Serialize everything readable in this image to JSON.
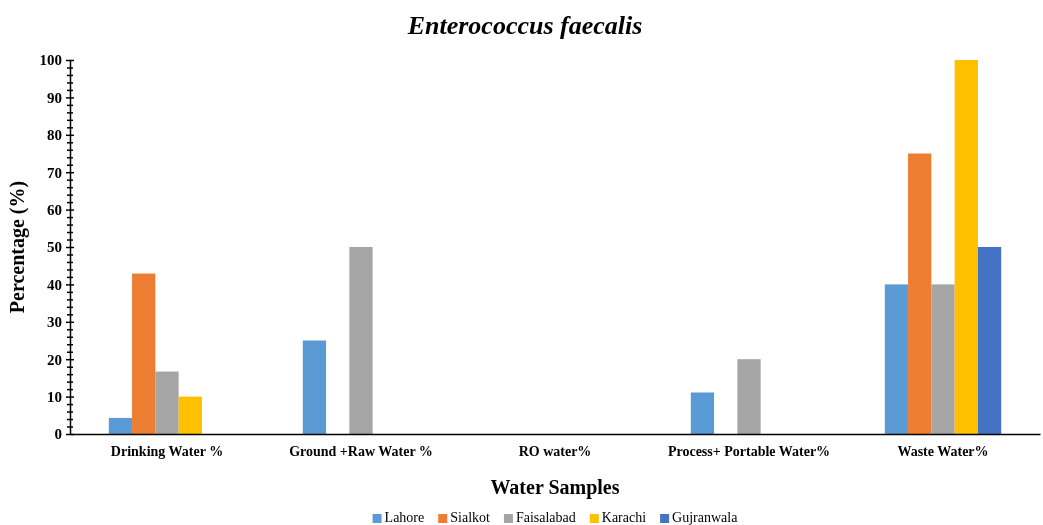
{
  "chart_data": {
    "type": "bar",
    "title": "Enterococcus faecalis",
    "xlabel": "Water Samples",
    "ylabel": "Percentage (%)",
    "categories": [
      "Drinking Water %",
      "Ground +Raw Water %",
      "RO water%",
      "Process+ Portable Water%",
      "Waste Water%"
    ],
    "series": [
      {
        "name": "Lahore",
        "color": "#5b9bd5",
        "values": [
          4.3,
          25,
          0,
          11.1,
          40
        ]
      },
      {
        "name": "Sialkot",
        "color": "#ed7d31",
        "values": [
          42.9,
          0,
          0,
          0,
          75
        ]
      },
      {
        "name": "Faisalabad",
        "color": "#a5a5a5",
        "values": [
          16.7,
          50,
          0,
          20,
          40
        ]
      },
      {
        "name": "Karachi",
        "color": "#ffc000",
        "values": [
          10,
          0,
          0,
          0,
          100
        ]
      },
      {
        "name": "Gujranwala",
        "color": "#4472c4",
        "values": [
          0,
          0,
          0,
          0,
          50
        ]
      }
    ],
    "ylim": [
      0,
      100
    ],
    "yticks": [
      0,
      {
        "value": 2,
        "label": null
      },
      {
        "value": 4,
        "label": null
      },
      {
        "value": 6,
        "label": null
      },
      {
        "value": 8,
        "label": null
      },
      10,
      {
        "value": 12,
        "label": null
      },
      {
        "value": 14,
        "label": null
      },
      {
        "value": 16,
        "label": null
      },
      {
        "value": 18,
        "label": null
      },
      20,
      {
        "value": 22,
        "label": null
      },
      {
        "value": 24,
        "label": null
      },
      {
        "value": 26,
        "label": null
      },
      {
        "value": 28,
        "label": null
      },
      30,
      {
        "value": 32,
        "label": null
      },
      {
        "value": 34,
        "label": null
      },
      {
        "value": 36,
        "label": null
      },
      {
        "value": 38,
        "label": null
      },
      40,
      {
        "value": 42,
        "label": null
      },
      {
        "value": 44,
        "label": null
      },
      {
        "value": 46,
        "label": null
      },
      {
        "value": 48,
        "label": null
      },
      50,
      {
        "value": 52,
        "label": null
      },
      {
        "value": 54,
        "label": null
      },
      {
        "value": 56,
        "label": null
      },
      {
        "value": 58,
        "label": null
      },
      60,
      {
        "value": 62,
        "label": null
      },
      {
        "value": 64,
        "label": null
      },
      {
        "value": 66,
        "label": null
      },
      {
        "value": 68,
        "label": null
      },
      70,
      {
        "value": 72,
        "label": null
      },
      {
        "value": 74,
        "label": null
      },
      {
        "value": 76,
        "label": null
      },
      {
        "value": 78,
        "label": null
      },
      80,
      {
        "value": 82,
        "label": null
      },
      {
        "value": 84,
        "label": null
      },
      {
        "value": 86,
        "label": null
      },
      {
        "value": 88,
        "label": null
      },
      90,
      {
        "value": 92,
        "label": null
      },
      {
        "value": 94,
        "label": null
      },
      {
        "value": 96,
        "label": null
      },
      {
        "value": 98,
        "label": null
      },
      100
    ],
    "grid": false,
    "legend": "bottom"
  }
}
